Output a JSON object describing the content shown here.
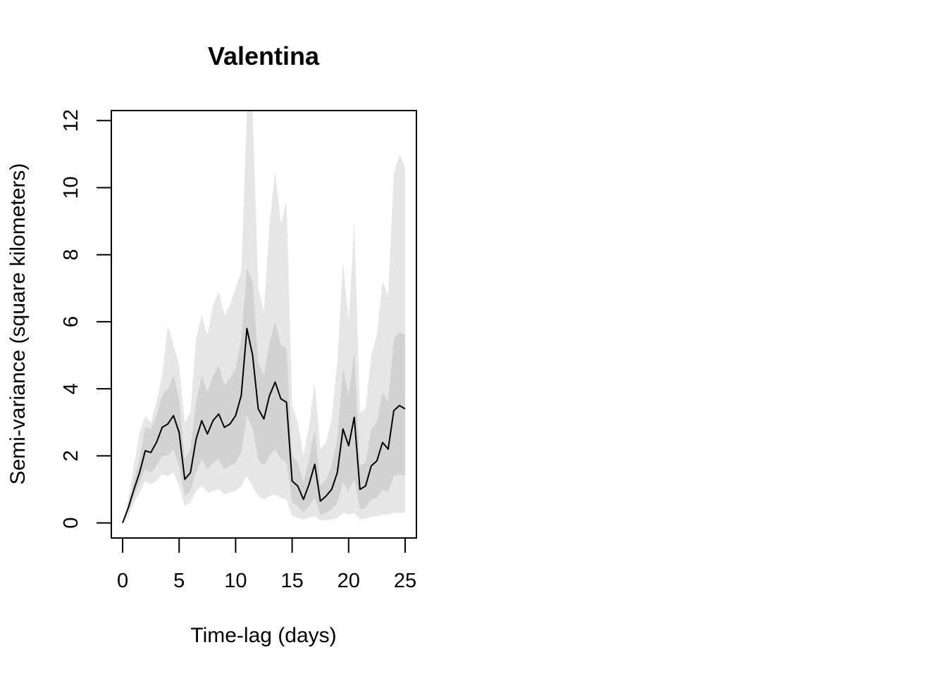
{
  "chart_data": {
    "type": "line",
    "title": "Valentina",
    "xlabel": "Time-lag (days)",
    "ylabel": "Semi-variance (square kilometers)",
    "xlim": [
      -1,
      26
    ],
    "ylim": [
      -0.45,
      12.3
    ],
    "x_ticks": [
      0,
      5,
      10,
      15,
      20,
      25
    ],
    "y_ticks": [
      0,
      2,
      4,
      6,
      8,
      10,
      12
    ],
    "grid": false,
    "legend": "none",
    "colors": {
      "outer_band": "#e6e6e6",
      "inner_band": "#d2d2d2",
      "line": "#000000"
    },
    "series": [
      {
        "role": "estimate",
        "x": [
          0,
          0.5,
          1,
          1.5,
          2,
          2.5,
          3,
          3.5,
          4,
          4.5,
          5,
          5.5,
          6,
          6.5,
          7,
          7.5,
          8,
          8.5,
          9,
          9.5,
          10,
          10.5,
          11,
          11.5,
          12,
          12.5,
          13,
          13.5,
          14,
          14.5,
          15,
          15.5,
          16,
          16.5,
          17,
          17.5,
          18,
          18.5,
          19,
          19.5,
          20,
          20.5,
          21,
          21.5,
          22,
          22.5,
          23,
          23.5,
          24,
          24.5,
          25
        ],
        "y": [
          0,
          0.45,
          1.0,
          1.5,
          2.15,
          2.1,
          2.4,
          2.85,
          2.95,
          3.2,
          2.7,
          1.3,
          1.5,
          2.5,
          3.05,
          2.65,
          3.05,
          3.25,
          2.85,
          2.95,
          3.2,
          3.8,
          5.8,
          5.0,
          3.4,
          3.1,
          3.8,
          4.2,
          3.7,
          3.6,
          1.25,
          1.1,
          0.7,
          1.15,
          1.75,
          0.65,
          0.8,
          1.0,
          1.5,
          2.8,
          2.3,
          3.15,
          1.0,
          1.1,
          1.7,
          1.85,
          2.4,
          2.2,
          3.35,
          3.5,
          3.4
        ]
      },
      {
        "role": "inner-band",
        "x": [
          0,
          0.5,
          1,
          1.5,
          2,
          2.5,
          3,
          3.5,
          4,
          4.5,
          5,
          5.5,
          6,
          6.5,
          7,
          7.5,
          8,
          8.5,
          9,
          9.5,
          10,
          10.5,
          11,
          11.5,
          12,
          12.5,
          13,
          13.5,
          14,
          14.5,
          15,
          15.5,
          16,
          16.5,
          17,
          17.5,
          18,
          18.5,
          19,
          19.5,
          20,
          20.5,
          21,
          21.5,
          22,
          22.5,
          23,
          23.5,
          24,
          24.5,
          25
        ],
        "low": [
          0,
          0.35,
          0.8,
          1.2,
          1.6,
          1.5,
          1.7,
          2.0,
          2.0,
          2.2,
          1.7,
          0.8,
          0.95,
          1.5,
          1.9,
          1.6,
          1.8,
          1.9,
          1.6,
          1.7,
          1.8,
          2.1,
          3.2,
          2.8,
          1.9,
          1.7,
          2.0,
          2.2,
          1.9,
          1.8,
          0.6,
          0.5,
          0.3,
          0.5,
          0.75,
          0.25,
          0.3,
          0.4,
          0.6,
          1.2,
          0.95,
          1.3,
          0.4,
          0.45,
          0.7,
          0.75,
          1.0,
          0.9,
          1.4,
          1.45,
          1.4
        ],
        "high": [
          0,
          0.55,
          1.25,
          1.9,
          2.85,
          2.8,
          3.2,
          3.8,
          4.0,
          4.4,
          3.7,
          1.9,
          2.2,
          3.6,
          4.4,
          3.9,
          4.4,
          4.7,
          4.1,
          4.3,
          4.6,
          5.5,
          7.6,
          7.2,
          4.8,
          4.4,
          5.4,
          6.0,
          5.3,
          5.2,
          2.0,
          1.8,
          1.2,
          1.9,
          2.8,
          1.1,
          1.3,
          1.7,
          2.5,
          4.6,
          3.8,
          5.1,
          1.7,
          1.8,
          2.8,
          3.0,
          3.9,
          3.6,
          5.5,
          5.7,
          5.6
        ]
      },
      {
        "role": "outer-band",
        "x": [
          0,
          0.5,
          1,
          1.5,
          2,
          2.5,
          3,
          3.5,
          4,
          4.5,
          5,
          5.5,
          6,
          6.5,
          7,
          7.5,
          8,
          8.5,
          9,
          9.5,
          10,
          10.5,
          11,
          11.5,
          12,
          12.5,
          13,
          13.5,
          14,
          14.5,
          15,
          15.5,
          16,
          16.5,
          17,
          17.5,
          18,
          18.5,
          19,
          19.5,
          20,
          20.5,
          21,
          21.5,
          22,
          22.5,
          23,
          23.5,
          24,
          24.5,
          25
        ],
        "low": [
          0,
          0.2,
          0.6,
          0.9,
          1.25,
          1.15,
          1.25,
          1.45,
          1.4,
          1.5,
          1.1,
          0.5,
          0.6,
          0.95,
          1.1,
          0.9,
          0.95,
          1.0,
          0.85,
          0.9,
          0.95,
          1.1,
          1.4,
          1.1,
          0.8,
          0.7,
          0.8,
          0.85,
          0.75,
          0.7,
          0.2,
          0.15,
          0.1,
          0.15,
          0.2,
          0.08,
          0.08,
          0.1,
          0.15,
          0.3,
          0.25,
          0.3,
          0.1,
          0.12,
          0.18,
          0.2,
          0.25,
          0.25,
          0.3,
          0.3,
          0.3
        ],
        "high": [
          0,
          0.7,
          1.7,
          2.7,
          3.2,
          3.0,
          3.6,
          4.4,
          5.9,
          5.3,
          4.7,
          3.0,
          3.3,
          5.5,
          6.2,
          5.6,
          6.5,
          6.9,
          6.2,
          6.5,
          7.0,
          7.5,
          12.3,
          12.3,
          7.0,
          6.3,
          8.9,
          10.5,
          8.9,
          9.6,
          3.5,
          3.0,
          2.0,
          2.9,
          4.2,
          2.2,
          2.4,
          3.1,
          4.8,
          7.8,
          6.0,
          9.0,
          3.3,
          3.4,
          5.0,
          5.6,
          7.2,
          6.8,
          10.4,
          11.0,
          10.6
        ]
      }
    ]
  }
}
